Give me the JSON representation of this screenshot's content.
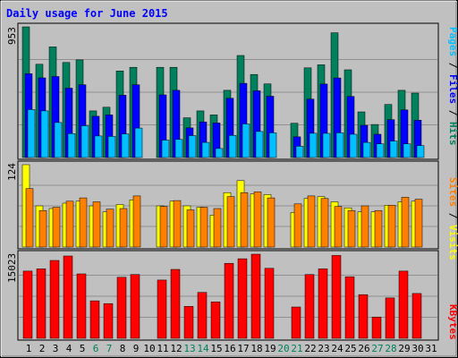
{
  "title": "Daily usage for June 2015",
  "chart_data": [
    {
      "type": "bar",
      "panel": "pages-files-hits",
      "ymax_label": "953",
      "ylim": [
        0,
        953
      ],
      "grid": true,
      "legend": [
        "Pages",
        "Files",
        "Hits"
      ],
      "categories": [
        "1",
        "2",
        "3",
        "4",
        "5",
        "6",
        "7",
        "8",
        "9",
        "10",
        "11",
        "12",
        "13",
        "14",
        "15",
        "16",
        "17",
        "18",
        "19",
        "20",
        "21",
        "22",
        "23",
        "24",
        "25",
        "26",
        "27",
        "28",
        "29",
        "30",
        "31"
      ],
      "series": [
        {
          "name": "Hits",
          "color": "#00805c",
          "values": [
            953,
            680,
            807,
            693,
            712,
            340,
            367,
            631,
            658,
            0,
            658,
            658,
            290,
            340,
            311,
            490,
            744,
            606,
            537,
            0,
            250,
            654,
            676,
            910,
            640,
            333,
            241,
            387,
            490,
            470,
            0
          ]
        },
        {
          "name": "Files",
          "color": "#0000ff",
          "values": [
            611,
            581,
            591,
            506,
            531,
            301,
            311,
            454,
            531,
            0,
            457,
            490,
            216,
            260,
            252,
            432,
            541,
            487,
            447,
            0,
            151,
            426,
            536,
            580,
            445,
            235,
            170,
            276,
            347,
            272,
            0
          ]
        },
        {
          "name": "Pages",
          "color": "#00c0ff",
          "values": [
            350,
            340,
            255,
            174,
            232,
            157,
            154,
            172,
            215,
            0,
            127,
            132,
            160,
            110,
            66,
            161,
            245,
            190,
            180,
            0,
            82,
            177,
            176,
            180,
            170,
            110,
            100,
            120,
            100,
            87,
            0
          ]
        }
      ]
    },
    {
      "type": "bar",
      "panel": "sites-visits",
      "ymax_label": "124",
      "ylim": [
        0,
        124
      ],
      "grid": true,
      "legend": [
        "Sites",
        "Visits"
      ],
      "categories": [
        "1",
        "2",
        "3",
        "4",
        "5",
        "6",
        "7",
        "8",
        "9",
        "10",
        "11",
        "12",
        "13",
        "14",
        "15",
        "16",
        "17",
        "18",
        "19",
        "20",
        "21",
        "22",
        "23",
        "24",
        "25",
        "26",
        "27",
        "28",
        "29",
        "30",
        "31"
      ],
      "series": [
        {
          "name": "Visits",
          "color": "#ffff00",
          "values": [
            124,
            62,
            58,
            66,
            69,
            62,
            53,
            64,
            71,
            0,
            62,
            69,
            62,
            60,
            48,
            82,
            100,
            80,
            79,
            0,
            52,
            73,
            76,
            68,
            59,
            53,
            53,
            63,
            68,
            69,
            0
          ],
          "note": "drawn behind"
        },
        {
          "name": "Sites",
          "color": "#ff8000",
          "values": [
            88,
            55,
            60,
            69,
            74,
            68,
            57,
            58,
            77,
            0,
            61,
            70,
            56,
            60,
            58,
            76,
            82,
            83,
            74,
            0,
            65,
            77,
            73,
            61,
            55,
            62,
            55,
            63,
            75,
            72,
            0
          ]
        }
      ]
    },
    {
      "type": "bar",
      "panel": "kbytes",
      "ymax_label": "15023",
      "ylim": [
        0,
        15023
      ],
      "grid": true,
      "legend": [
        "KBytes"
      ],
      "categories": [
        "1",
        "2",
        "3",
        "4",
        "5",
        "6",
        "7",
        "8",
        "9",
        "10",
        "11",
        "12",
        "13",
        "14",
        "15",
        "16",
        "17",
        "18",
        "19",
        "20",
        "21",
        "22",
        "23",
        "24",
        "25",
        "26",
        "27",
        "28",
        "29",
        "30",
        "31"
      ],
      "series": [
        {
          "name": "KBytes",
          "color": "#ff0000",
          "values": [
            12000,
            12400,
            13900,
            14700,
            11500,
            6700,
            6200,
            10900,
            11400,
            0,
            10400,
            12300,
            5700,
            8200,
            6500,
            13400,
            14200,
            15023,
            12500,
            0,
            5600,
            11400,
            12400,
            14800,
            11000,
            7800,
            3800,
            7200,
            12000,
            8000,
            0
          ]
        }
      ]
    }
  ],
  "legend_text": {
    "top": [
      "Pages",
      " / ",
      "Files",
      " / ",
      "Hits"
    ],
    "mid": [
      "Sites",
      " / ",
      "Visits"
    ],
    "bot": [
      "KBytes"
    ]
  },
  "colors": {
    "hits": "#00805c",
    "files": "#0000ff",
    "pages": "#00c0ff",
    "visits": "#ffff00",
    "sites": "#ff8000",
    "kbytes": "#ff0000",
    "title": "#0000ff",
    "weekday_label": "#000000",
    "weekend_label": "#00805c",
    "panel_bg": "#c0c0c0"
  },
  "day_labels": [
    {
      "text": "1",
      "weekend": false
    },
    {
      "text": "2",
      "weekend": false
    },
    {
      "text": "3",
      "weekend": false
    },
    {
      "text": "4",
      "weekend": false
    },
    {
      "text": "5",
      "weekend": false
    },
    {
      "text": "6",
      "weekend": true
    },
    {
      "text": "7",
      "weekend": true
    },
    {
      "text": "8",
      "weekend": false
    },
    {
      "text": "9",
      "weekend": false
    },
    {
      "text": "10",
      "weekend": false
    },
    {
      "text": "11",
      "weekend": false
    },
    {
      "text": "12",
      "weekend": false
    },
    {
      "text": "13",
      "weekend": true
    },
    {
      "text": "14",
      "weekend": true
    },
    {
      "text": "15",
      "weekend": false
    },
    {
      "text": "16",
      "weekend": false
    },
    {
      "text": "17",
      "weekend": false
    },
    {
      "text": "18",
      "weekend": false
    },
    {
      "text": "19",
      "weekend": false
    },
    {
      "text": "20",
      "weekend": true
    },
    {
      "text": "21",
      "weekend": true
    },
    {
      "text": "22",
      "weekend": false
    },
    {
      "text": "23",
      "weekend": false
    },
    {
      "text": "24",
      "weekend": false
    },
    {
      "text": "25",
      "weekend": false
    },
    {
      "text": "26",
      "weekend": false
    },
    {
      "text": "27",
      "weekend": true
    },
    {
      "text": "28",
      "weekend": true
    },
    {
      "text": "29",
      "weekend": false
    },
    {
      "text": "30",
      "weekend": false
    },
    {
      "text": "31",
      "weekend": false
    }
  ]
}
